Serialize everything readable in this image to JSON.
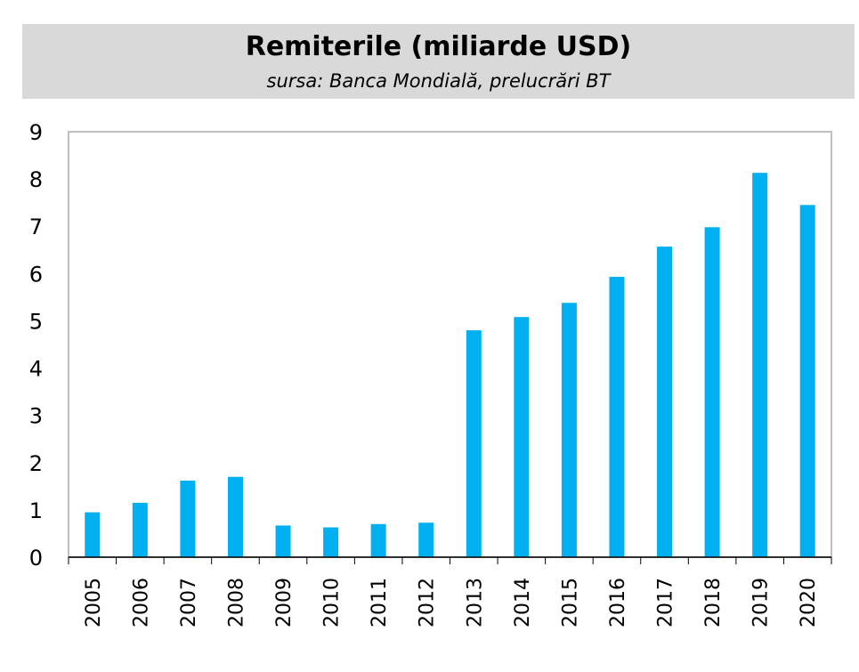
{
  "header": {
    "title": "Remiterile (miliarde USD)",
    "subtitle": "sursa: Banca Mondială, prelucrări BT"
  },
  "chart_data": {
    "type": "bar",
    "title": "Remiterile (miliarde USD)",
    "subtitle": "sursa: Banca Mondială, prelucrări BT",
    "categories": [
      "2005",
      "2006",
      "2007",
      "2008",
      "2009",
      "2010",
      "2011",
      "2012",
      "2013",
      "2014",
      "2015",
      "2016",
      "2017",
      "2018",
      "2019",
      "2020"
    ],
    "values": [
      0.95,
      1.15,
      1.62,
      1.7,
      0.67,
      0.63,
      0.7,
      0.73,
      4.8,
      5.08,
      5.38,
      5.93,
      6.57,
      6.98,
      8.13,
      7.45
    ],
    "ylim": [
      0,
      9
    ],
    "yticks": [
      0,
      1,
      2,
      3,
      4,
      5,
      6,
      7,
      8,
      9
    ],
    "xlabel": "",
    "ylabel": "",
    "grid": false,
    "legend": "none",
    "bar_color": "#00b0f0"
  }
}
